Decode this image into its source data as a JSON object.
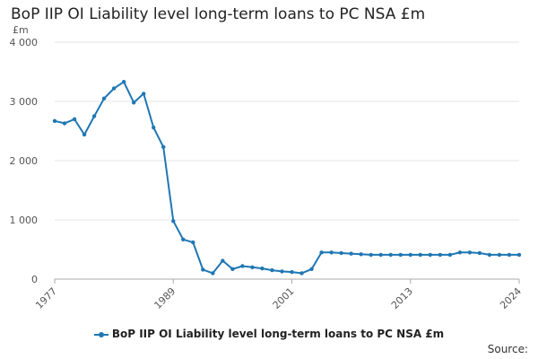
{
  "title": "BoP IIP OI Liability level long-term loans to PC NSA £m",
  "unit": "£m",
  "source_label": "Source:",
  "colors": {
    "series": "#1f77b4",
    "grid": "#e6e6e6",
    "axis": "#aaaaaa"
  },
  "chart_data": {
    "type": "line",
    "title": "BoP IIP OI Liability level long-term loans to PC NSA £m",
    "ylabel": "£m",
    "xlabel": "",
    "ylim": [
      0,
      4000
    ],
    "y_ticks": [
      0,
      1000,
      2000,
      3000,
      4000
    ],
    "y_tick_labels": [
      "0",
      "1 000",
      "2 000",
      "3 000",
      "4 000"
    ],
    "x_ticks": [
      1977,
      1989,
      2001,
      2013,
      2024
    ],
    "grid": true,
    "legend_position": "bottom",
    "series": [
      {
        "name": "BoP IIP OI Liability level long-term loans to PC NSA £m",
        "x": [
          1977,
          1978,
          1979,
          1980,
          1981,
          1982,
          1983,
          1984,
          1985,
          1986,
          1987,
          1988,
          1989,
          1990,
          1991,
          1992,
          1993,
          1994,
          1995,
          1996,
          1997,
          1998,
          1999,
          2000,
          2001,
          2002,
          2003,
          2004,
          2005,
          2006,
          2007,
          2008,
          2009,
          2010,
          2011,
          2012,
          2013,
          2014,
          2015,
          2016,
          2017,
          2018,
          2019,
          2020,
          2021,
          2022,
          2023,
          2024
        ],
        "values": [
          2670,
          2630,
          2700,
          2440,
          2750,
          3050,
          3220,
          3330,
          2980,
          3130,
          2560,
          2230,
          980,
          670,
          620,
          160,
          100,
          310,
          170,
          220,
          200,
          180,
          150,
          130,
          120,
          100,
          170,
          450,
          450,
          440,
          430,
          420,
          410,
          410,
          410,
          410,
          410,
          410,
          410,
          410,
          410,
          450,
          450,
          440,
          410,
          410,
          410,
          410
        ]
      }
    ]
  }
}
